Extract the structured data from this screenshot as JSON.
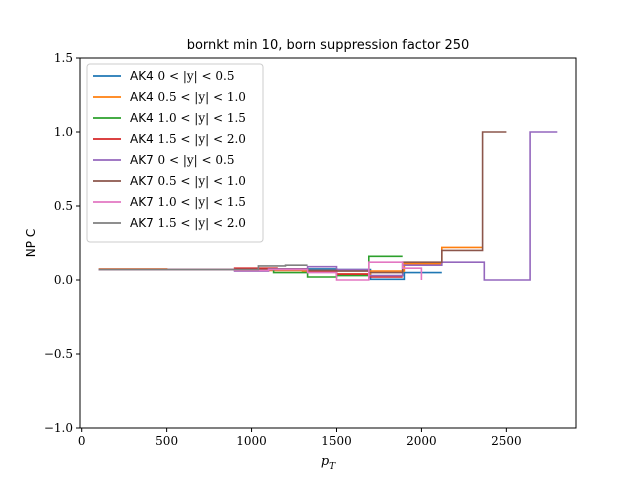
{
  "chart_data": {
    "type": "line",
    "title": "bornkt min 10, born suppression factor 250",
    "xlabel": "p_T",
    "ylabel": "NP C",
    "xlim": [
      -10,
      2910
    ],
    "ylim": [
      -1.0,
      1.5
    ],
    "xticks": [
      0,
      500,
      1000,
      1500,
      2000,
      2500
    ],
    "yticks": [
      -1.0,
      -0.5,
      0.0,
      0.5,
      1.0,
      1.5
    ],
    "ytick_labels": [
      "−1.0",
      "−0.5",
      "0.0",
      "0.5",
      "1.0",
      "1.5"
    ],
    "grid": false,
    "legend_position": "top-left",
    "series": [
      {
        "name": "AK4 0 < |y| < 0.5",
        "label_prefix": "AK4",
        "label_math": "0 < |y| < 0.5",
        "color": "#1f77b4",
        "x": [
          100,
          500,
          900,
          1100,
          1300,
          1500,
          1700,
          1900,
          2120
        ],
        "y": [
          0.07,
          0.07,
          0.065,
          0.07,
          0.075,
          0.07,
          0.005,
          0.05,
          0.05
        ]
      },
      {
        "name": "AK4 0.5 < |y| < 1.0",
        "label_prefix": "AK4",
        "label_math": "0.5 < |y| < 1.0",
        "color": "#ff7f0e",
        "x": [
          100,
          500,
          900,
          1100,
          1300,
          1500,
          1700,
          1900,
          2120,
          2360
        ],
        "y": [
          0.075,
          0.07,
          0.07,
          0.065,
          0.06,
          0.04,
          0.06,
          0.11,
          0.22,
          0.22
        ]
      },
      {
        "name": "AK4 1.0 < |y| < 1.5",
        "label_prefix": "AK4",
        "label_math": "1.0 < |y| < 1.5",
        "color": "#2ca02c",
        "x": [
          100,
          500,
          900,
          1130,
          1330,
          1500,
          1690,
          1890
        ],
        "y": [
          0.07,
          0.07,
          0.07,
          0.05,
          0.02,
          0.03,
          0.16,
          0.16
        ]
      },
      {
        "name": "AK4 1.5 < |y| < 2.0",
        "label_prefix": "AK4",
        "label_math": "1.5 < |y| < 2.0",
        "color": "#d62728",
        "x": [
          100,
          500,
          900,
          1150,
          1330,
          1500,
          1690,
          1890
        ],
        "y": [
          0.07,
          0.07,
          0.08,
          0.075,
          0.06,
          0.04,
          0.02,
          0.02
        ]
      },
      {
        "name": "AK7 0 < |y| < 0.5",
        "label_prefix": "AK7",
        "label_math": "0 < |y| < 0.5",
        "color": "#9467bd",
        "x": [
          100,
          500,
          900,
          1100,
          1330,
          1500,
          1690,
          1890,
          2120,
          2370,
          2640,
          2800
        ],
        "y": [
          0.07,
          0.07,
          0.06,
          0.075,
          0.09,
          0.07,
          0.03,
          0.1,
          0.12,
          0.0,
          1.0,
          1.0
        ]
      },
      {
        "name": "AK7 0.5 < |y| < 1.0",
        "label_prefix": "AK7",
        "label_math": "0.5 < |y| < 1.0",
        "color": "#8c564b",
        "x": [
          100,
          500,
          900,
          1100,
          1330,
          1500,
          1690,
          1890,
          2120,
          2360,
          2500
        ],
        "y": [
          0.07,
          0.07,
          0.07,
          0.07,
          0.065,
          0.06,
          0.05,
          0.12,
          0.2,
          1.0,
          1.0
        ]
      },
      {
        "name": "AK7 1.0 < |y| < 1.5",
        "label_prefix": "AK7",
        "label_math": "1.0 < |y| < 1.5",
        "color": "#e377c2",
        "x": [
          100,
          500,
          900,
          1100,
          1330,
          1500,
          1690,
          1890,
          2000
        ],
        "y": [
          0.07,
          0.07,
          0.065,
          0.07,
          0.05,
          0.0,
          0.12,
          0.08,
          0.0
        ]
      },
      {
        "name": "AK7 1.5 < |y| < 2.0",
        "label_prefix": "AK7",
        "label_math": "1.5 < |y| < 2.0",
        "color": "#7f7f7f",
        "x": [
          100,
          500,
          900,
          1040,
          1200,
          1330
        ],
        "y": [
          0.07,
          0.07,
          0.07,
          0.095,
          0.1,
          0.1
        ]
      }
    ]
  }
}
